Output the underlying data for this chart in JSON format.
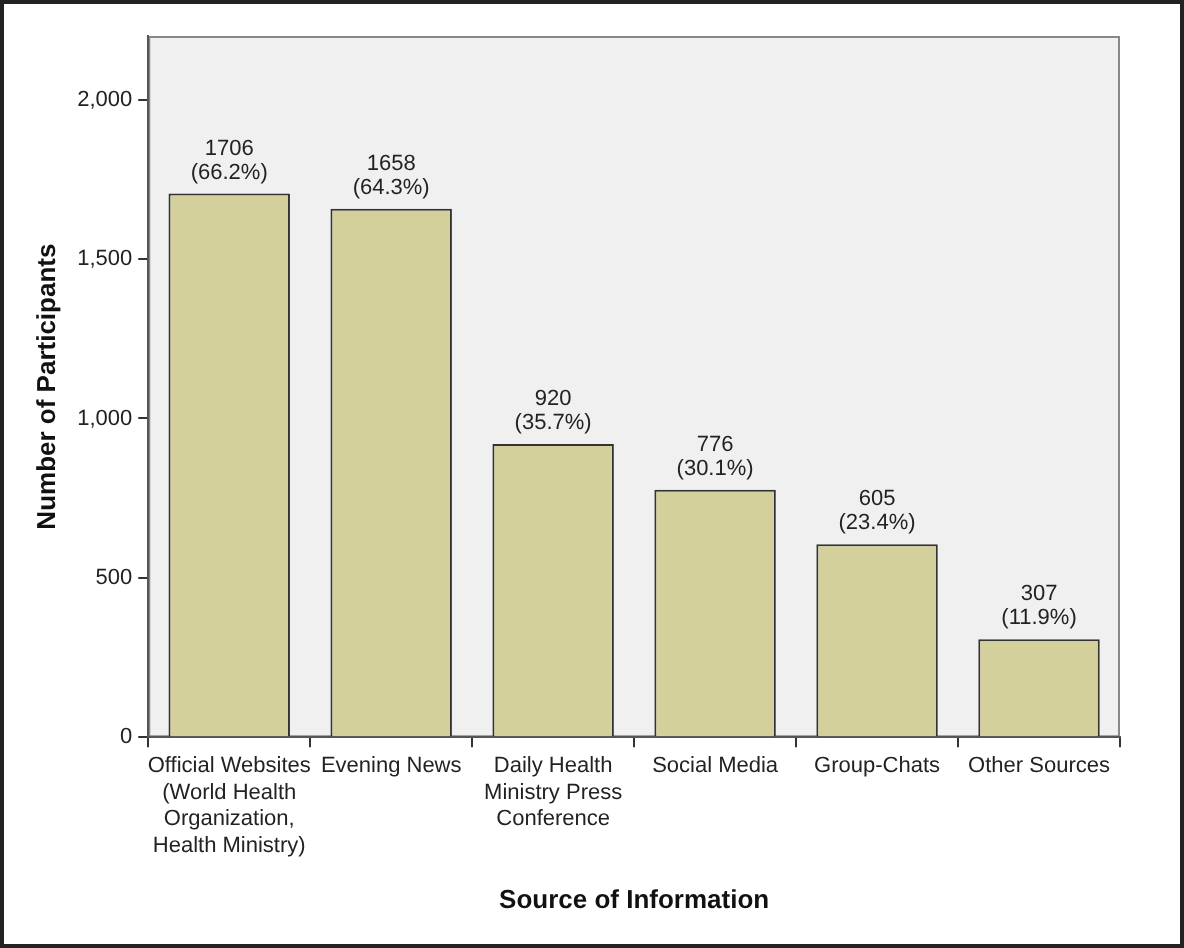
{
  "chart_data": {
    "type": "bar",
    "xlabel": "Source of Information",
    "ylabel": "Number of Participants",
    "categories": [
      "Official Websites (World Health Organization, Health Ministry)",
      "Evening News",
      "Daily Health Ministry Press Conference",
      "Social Media",
      "Group-Chats",
      "Other Sources"
    ],
    "values": [
      1706,
      1658,
      920,
      776,
      605,
      307
    ],
    "value_labels": [
      "1706\n(66.2%)",
      "1658\n(64.3%)",
      "920\n(35.7%)",
      "776\n(30.1%)",
      "605\n(23.4%)",
      "307\n(11.9%)"
    ],
    "color": "#d4d09c",
    "ylim": [
      0,
      2200
    ],
    "yticks": [
      0,
      {
        "value": 500,
        "label": "500"
      },
      {
        "value": 1000,
        "label": "1,000"
      },
      {
        "value": 1500,
        "label": "1,500"
      },
      {
        "value": 2000,
        "label": "2,000"
      }
    ],
    "grid": false,
    "legend": false
  }
}
